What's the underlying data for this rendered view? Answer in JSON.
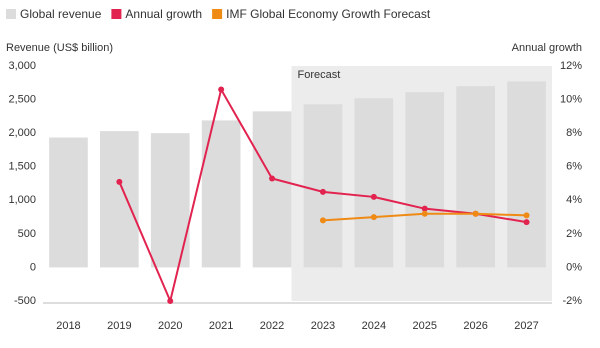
{
  "chart_data": {
    "type": "combo",
    "y_title": "Revenue (US$ billion)",
    "y2_title": "Annual growth",
    "categories": [
      "2018",
      "2019",
      "2020",
      "2021",
      "2022",
      "2023",
      "2024",
      "2025",
      "2026",
      "2027"
    ],
    "forecast": {
      "label": "Forecast",
      "from": "2023"
    },
    "series": [
      {
        "name": "Global revenue",
        "type": "bar",
        "axis": "y",
        "color": "#dcdcdc",
        "values": [
          1935,
          2030,
          2000,
          2190,
          2325,
          2430,
          2520,
          2610,
          2700,
          2770
        ]
      },
      {
        "name": "Annual growth",
        "type": "line",
        "axis": "y2",
        "color": "#e2234f",
        "values": [
          null,
          5.1,
          -2.0,
          10.6,
          5.3,
          4.5,
          4.2,
          3.5,
          3.2,
          2.7
        ]
      },
      {
        "name": "IMF Global Economy Growth Forecast",
        "type": "line",
        "axis": "y2",
        "color": "#ef8a14",
        "values": [
          null,
          null,
          null,
          null,
          null,
          2.8,
          3.0,
          3.2,
          3.2,
          3.1
        ]
      }
    ],
    "ylim": [
      -500,
      3000
    ],
    "yticks": [
      -500,
      0,
      500,
      {
        "value": 1000,
        "label": "1,000"
      },
      {
        "value": 1500,
        "label": "1,500"
      },
      {
        "value": 2000,
        "label": "2,000"
      },
      {
        "value": 2500,
        "label": "2,500"
      },
      {
        "value": 3000,
        "label": "3,000"
      }
    ],
    "y2lim": [
      -2,
      12
    ],
    "y2ticks": [
      {
        "value": -2,
        "label": "-2%"
      },
      {
        "value": 0,
        "label": "0%"
      },
      {
        "value": 2,
        "label": "2%"
      },
      {
        "value": 4,
        "label": "4%"
      },
      {
        "value": 6,
        "label": "6%"
      },
      {
        "value": 8,
        "label": "8%"
      },
      {
        "value": 10,
        "label": "10%"
      },
      {
        "value": 12,
        "label": "12%"
      }
    ],
    "grid": false
  }
}
